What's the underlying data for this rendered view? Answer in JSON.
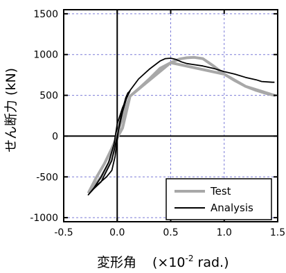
{
  "chart_data": {
    "type": "line",
    "xlabel_main": "変形角",
    "xlabel_prefix": "(×10",
    "xlabel_exp": "-2",
    "xlabel_suffix": " rad.)",
    "ylabel": "せん断力 (kN)",
    "xlim": [
      -0.5,
      1.5
    ],
    "ylim": [
      -1050,
      1550
    ],
    "x_ticks": [
      -0.5,
      0.0,
      0.5,
      1.0,
      1.5
    ],
    "x_tick_labels": [
      "-0.5",
      "0.0",
      "0.5",
      "1.0",
      "1.5"
    ],
    "y_ticks": [
      -1000,
      -500,
      0,
      500,
      1000,
      1500
    ],
    "y_tick_labels": [
      "-1000",
      "-500",
      "0",
      "500",
      "1000",
      "1500"
    ],
    "grid": true,
    "legend_position": "bottom-right",
    "series": [
      {
        "name": "Test",
        "color": "#a8a8a8",
        "points": [
          [
            -0.27,
            -700
          ],
          [
            -0.2,
            -520
          ],
          [
            -0.12,
            -340
          ],
          [
            -0.05,
            -150
          ],
          [
            0.0,
            0
          ],
          [
            0.03,
            150
          ],
          [
            0.07,
            310
          ],
          [
            0.1,
            420
          ],
          [
            0.12,
            490
          ],
          [
            0.2,
            580
          ],
          [
            0.3,
            700
          ],
          [
            0.4,
            830
          ],
          [
            0.5,
            900
          ],
          [
            0.58,
            945
          ],
          [
            0.65,
            960
          ],
          [
            0.72,
            965
          ],
          [
            0.8,
            950
          ],
          [
            0.9,
            860
          ],
          [
            1.0,
            760
          ],
          [
            1.1,
            680
          ],
          [
            1.2,
            610
          ],
          [
            1.3,
            560
          ],
          [
            1.4,
            520
          ],
          [
            1.47,
            500
          ],
          [
            1.2,
            610
          ],
          [
            1.0,
            760
          ],
          [
            0.5,
            900
          ],
          [
            0.12,
            490
          ],
          [
            0.05,
            100
          ],
          [
            0.0,
            -20
          ],
          [
            -0.03,
            -180
          ],
          [
            -0.08,
            -340
          ],
          [
            -0.15,
            -500
          ],
          [
            -0.22,
            -620
          ],
          [
            -0.27,
            -700
          ]
        ]
      },
      {
        "name": "Analysis",
        "color": "#000000",
        "points": [
          [
            -0.27,
            -720
          ],
          [
            -0.18,
            -590
          ],
          [
            -0.1,
            -500
          ],
          [
            -0.05,
            -420
          ],
          [
            -0.02,
            -250
          ],
          [
            0.0,
            -50
          ],
          [
            0.02,
            150
          ],
          [
            0.05,
            330
          ],
          [
            0.08,
            470
          ],
          [
            0.1,
            530
          ],
          [
            0.12,
            555
          ],
          [
            0.1,
            500
          ],
          [
            0.05,
            350
          ],
          [
            0.0,
            150
          ],
          [
            -0.03,
            -100
          ],
          [
            -0.08,
            -320
          ],
          [
            -0.15,
            -500
          ],
          [
            -0.22,
            -640
          ],
          [
            -0.27,
            -720
          ],
          [
            -0.23,
            -660
          ],
          [
            -0.15,
            -560
          ],
          [
            -0.05,
            -300
          ],
          [
            0.0,
            0
          ],
          [
            0.05,
            300
          ],
          [
            0.1,
            520
          ],
          [
            0.12,
            560
          ],
          [
            0.2,
            700
          ],
          [
            0.3,
            820
          ],
          [
            0.4,
            920
          ],
          [
            0.45,
            950
          ],
          [
            0.5,
            955
          ],
          [
            0.55,
            940
          ],
          [
            0.6,
            910
          ],
          [
            0.65,
            890
          ],
          [
            0.7,
            880
          ],
          [
            0.8,
            860
          ],
          [
            0.9,
            830
          ],
          [
            1.0,
            790
          ],
          [
            1.1,
            760
          ],
          [
            1.2,
            720
          ],
          [
            1.3,
            690
          ],
          [
            1.35,
            670
          ],
          [
            1.4,
            665
          ],
          [
            1.45,
            660
          ],
          [
            1.47,
            660
          ]
        ]
      }
    ]
  }
}
